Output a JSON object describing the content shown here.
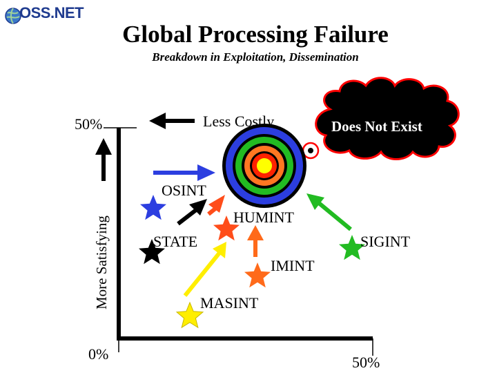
{
  "logo": {
    "text": "OSS.NET",
    "icon": "globe-icon"
  },
  "title": "Global Processing Failure",
  "subtitle": "Breakdown in Exploitation, Dissemination",
  "axes": {
    "y_label": "More Satisfying",
    "y_top_label": "50%",
    "origin_label": "0%",
    "x_right_label": "50%"
  },
  "annotations": {
    "less_costly": "Less Costly",
    "does_not_exist": "Does Not Exist"
  },
  "sources": {
    "osint": "OSINT",
    "humint": "HUMINT",
    "state": "STATE",
    "sigint": "SIGINT",
    "imint": "IMINT",
    "masint": "MASINT"
  },
  "colors": {
    "osint": "#2c3ee0",
    "humint": "#ff4d1a",
    "state": "#000000",
    "sigint": "#22bb22",
    "imint": "#ff6a1a",
    "masint": "#ffee00",
    "target_rings": [
      "#2c3ee0",
      "#22bb22",
      "#ff7722",
      "#ff2200",
      "#ffff00"
    ],
    "cloud": "#000000",
    "cloud_outline": "#ff0000"
  }
}
